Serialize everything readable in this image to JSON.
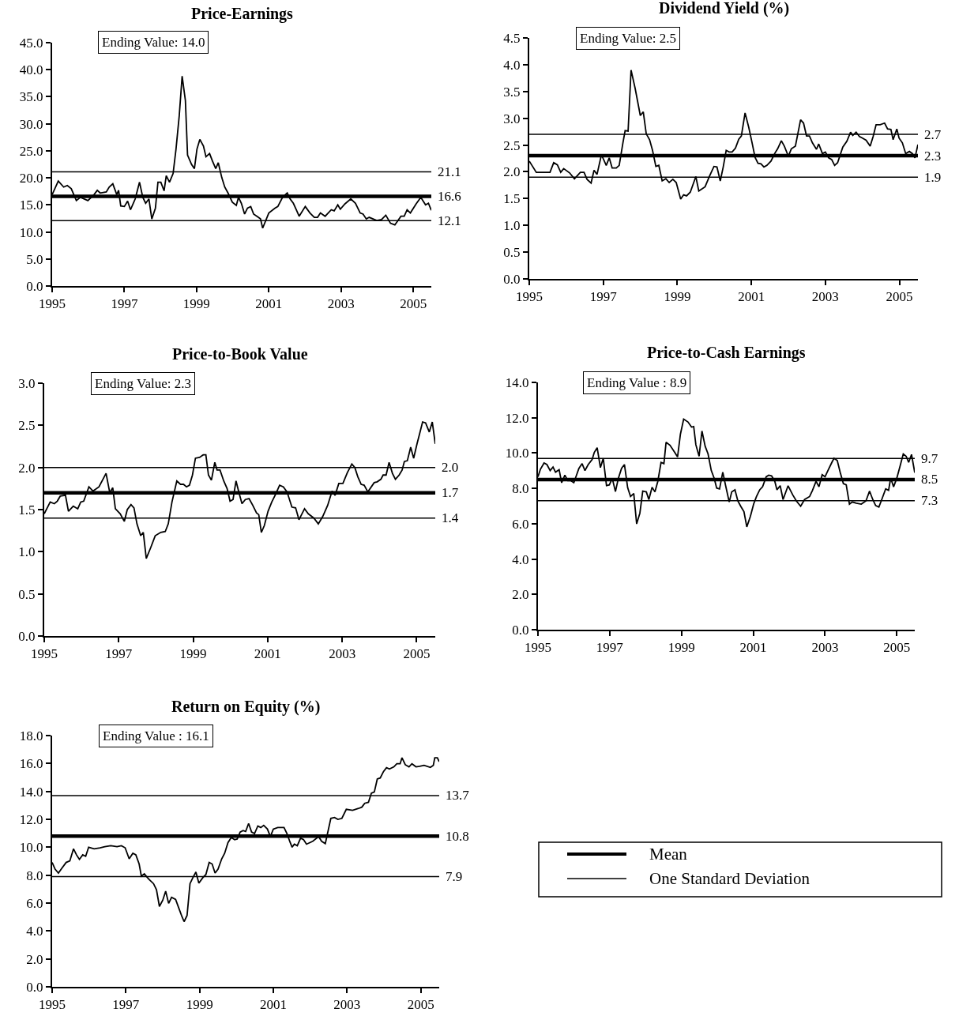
{
  "chart_data": [
    {
      "type": "line",
      "title": "Price-Earnings",
      "annotations": [
        "Ending Value: 14.0"
      ],
      "xlim": [
        1995,
        2005.5
      ],
      "xticks": [
        1995,
        1997,
        1999,
        2001,
        2003,
        2005
      ],
      "ylim": [
        0,
        45
      ],
      "yticks": [
        {
          "value": 0,
          "label": "0.0"
        },
        {
          "value": 5,
          "label": "5.0"
        },
        {
          "value": 10,
          "label": "10.0"
        },
        {
          "value": 15,
          "label": "15.0"
        },
        {
          "value": 20,
          "label": "20.0"
        },
        {
          "value": 25,
          "label": "25.0"
        },
        {
          "value": 30,
          "label": "30.0"
        },
        {
          "value": 35,
          "label": "35.0"
        },
        {
          "value": 40,
          "label": "40.0"
        },
        {
          "value": 45,
          "label": "45.0"
        }
      ],
      "ref_lines": [
        {
          "axis": "y",
          "value": 21.1,
          "label": "21.1",
          "color": "#000000"
        },
        {
          "axis": "y",
          "value": 16.6,
          "label": "16.6",
          "color": "#000000"
        },
        {
          "axis": "y",
          "value": 12.1,
          "label": "12.1",
          "color": "#000000"
        }
      ],
      "x": [
        1995.0,
        1995.17,
        1995.32,
        1995.42,
        1995.53,
        1995.67,
        1995.78,
        1995.99,
        1996.16,
        1996.25,
        1996.33,
        1996.5,
        1996.58,
        1996.68,
        1996.79,
        1996.84,
        1996.9,
        1997.0,
        1997.09,
        1997.17,
        1997.3,
        1997.42,
        1997.51,
        1997.59,
        1997.68,
        1997.76,
        1997.86,
        1997.93,
        1998.01,
        1998.1,
        1998.16,
        1998.25,
        1998.35,
        1998.43,
        1998.52,
        1998.6,
        1998.69,
        1998.75,
        1998.86,
        1998.94,
        1999.01,
        1999.09,
        1999.19,
        1999.26,
        1999.36,
        1999.44,
        1999.53,
        1999.6,
        1999.7,
        1999.78,
        1999.87,
        1999.99,
        2000.1,
        2000.16,
        2000.24,
        2000.33,
        2000.41,
        2000.5,
        2000.58,
        2000.71,
        2000.77,
        2000.83,
        2001.0,
        2001.17,
        2001.25,
        2001.38,
        2001.51,
        2001.59,
        2001.68,
        2001.76,
        2001.84,
        2002.01,
        2002.14,
        2002.26,
        2002.35,
        2002.43,
        2002.56,
        2002.73,
        2002.81,
        2002.91,
        2002.98,
        2003.11,
        2003.27,
        2003.4,
        2003.53,
        2003.61,
        2003.7,
        2003.78,
        2003.99,
        2004.12,
        2004.24,
        2004.37,
        2004.49,
        2004.66,
        2004.75,
        2004.83,
        2004.92,
        2005.08,
        2005.21,
        2005.34,
        2005.42,
        2005.5
      ],
      "series": [
        {
          "color": "#000000",
          "values": [
            16.9,
            19.4,
            18.3,
            18.6,
            18.0,
            15.8,
            16.4,
            15.8,
            16.9,
            17.7,
            17.2,
            17.4,
            18.3,
            18.9,
            16.9,
            17.7,
            14.8,
            14.7,
            15.7,
            14.1,
            16.1,
            19.2,
            16.4,
            15.3,
            16.1,
            12.4,
            14.4,
            19.2,
            19.2,
            17.6,
            20.4,
            19.2,
            20.8,
            25.3,
            31.5,
            38.8,
            34.3,
            24.2,
            22.5,
            21.7,
            25.3,
            27.1,
            25.9,
            23.9,
            24.5,
            23.1,
            21.7,
            22.8,
            20.0,
            18.3,
            17.2,
            15.5,
            14.9,
            16.4,
            15.3,
            13.3,
            14.4,
            14.7,
            13.3,
            12.7,
            12.4,
            10.7,
            13.5,
            14.4,
            14.7,
            16.4,
            17.2,
            16.1,
            15.3,
            14.1,
            12.9,
            14.7,
            13.5,
            12.7,
            12.7,
            13.5,
            12.9,
            14.1,
            13.9,
            15.0,
            14.2,
            15.2,
            16.1,
            15.3,
            13.5,
            13.3,
            12.4,
            12.7,
            12.1,
            12.3,
            13.1,
            11.6,
            11.3,
            12.9,
            12.9,
            14.1,
            13.5,
            15.2,
            16.4,
            15.0,
            15.3,
            14.0
          ]
        }
      ]
    },
    {
      "type": "line",
      "title": "Dividend Yield (%)",
      "annotations": [
        "Ending Value: 2.5"
      ],
      "xlim": [
        1995,
        2005.5
      ],
      "xticks": [
        1995,
        1997,
        1999,
        2001,
        2003,
        2005
      ],
      "ylim": [
        0,
        4.5
      ],
      "yticks": [
        {
          "value": 0,
          "label": "0.0"
        },
        {
          "value": 0.5,
          "label": "0.5"
        },
        {
          "value": 1,
          "label": "1.0"
        },
        {
          "value": 1.5,
          "label": "1.5"
        },
        {
          "value": 2,
          "label": "2.0"
        },
        {
          "value": 2.5,
          "label": "2.5"
        },
        {
          "value": 3,
          "label": "3.0"
        },
        {
          "value": 3.5,
          "label": "3.5"
        },
        {
          "value": 4,
          "label": "4.0"
        },
        {
          "value": 4.5,
          "label": "4.5"
        }
      ],
      "ref_lines": [
        {
          "axis": "y",
          "value": 2.7,
          "label": "2.7",
          "color": "#000000"
        },
        {
          "axis": "y",
          "value": 2.3,
          "label": "2.3",
          "color": "#000000"
        },
        {
          "axis": "y",
          "value": 1.9,
          "label": "1.9",
          "color": "#000000"
        }
      ],
      "x": [
        1995.0,
        1995.19,
        1995.56,
        1995.66,
        1995.76,
        1995.85,
        1995.93,
        1996.09,
        1996.22,
        1996.38,
        1996.48,
        1996.56,
        1996.67,
        1996.75,
        1996.83,
        1996.95,
        1997.08,
        1997.16,
        1997.24,
        1997.35,
        1997.43,
        1997.53,
        1997.59,
        1997.67,
        1997.75,
        1997.86,
        1998.0,
        1998.08,
        1998.16,
        1998.25,
        1998.33,
        1998.42,
        1998.5,
        1998.59,
        1998.69,
        1998.78,
        1998.88,
        1998.97,
        1999.09,
        1999.17,
        1999.25,
        1999.35,
        1999.5,
        1999.58,
        1999.75,
        1999.87,
        1999.99,
        2000.07,
        2000.16,
        2000.24,
        2000.32,
        2000.4,
        2000.48,
        2000.57,
        2000.66,
        2000.73,
        2000.83,
        2000.93,
        2001.02,
        2001.1,
        2001.18,
        2001.26,
        2001.34,
        2001.42,
        2001.53,
        2001.63,
        2001.71,
        2001.81,
        2001.89,
        2002.0,
        2002.08,
        2002.19,
        2002.33,
        2002.41,
        2002.49,
        2002.57,
        2002.65,
        2002.76,
        2002.82,
        2002.92,
        2003.0,
        2003.09,
        2003.17,
        2003.25,
        2003.33,
        2003.47,
        2003.58,
        2003.68,
        2003.74,
        2003.83,
        2003.92,
        2004.0,
        2004.1,
        2004.21,
        2004.29,
        2004.37,
        2004.48,
        2004.6,
        2004.68,
        2004.77,
        2004.83,
        2004.93,
        2004.99,
        2005.08,
        2005.17,
        2005.27,
        2005.35,
        2005.42,
        2005.5
      ],
      "series": [
        {
          "color": "#000000",
          "values": [
            2.2,
            1.99,
            1.99,
            2.17,
            2.13,
            1.99,
            2.06,
            1.98,
            1.87,
            1.99,
            1.99,
            1.86,
            1.79,
            2.03,
            1.95,
            2.32,
            2.12,
            2.26,
            2.07,
            2.07,
            2.12,
            2.54,
            2.77,
            2.76,
            3.9,
            3.56,
            3.05,
            3.12,
            2.71,
            2.6,
            2.4,
            2.1,
            2.12,
            1.83,
            1.87,
            1.8,
            1.86,
            1.8,
            1.49,
            1.57,
            1.55,
            1.62,
            1.91,
            1.64,
            1.72,
            1.92,
            2.1,
            2.09,
            1.83,
            2.09,
            2.4,
            2.37,
            2.37,
            2.44,
            2.61,
            2.67,
            3.1,
            2.83,
            2.54,
            2.27,
            2.16,
            2.15,
            2.09,
            2.12,
            2.2,
            2.34,
            2.43,
            2.58,
            2.48,
            2.29,
            2.43,
            2.48,
            2.97,
            2.91,
            2.67,
            2.67,
            2.54,
            2.42,
            2.52,
            2.34,
            2.37,
            2.26,
            2.23,
            2.12,
            2.17,
            2.46,
            2.57,
            2.74,
            2.68,
            2.74,
            2.66,
            2.63,
            2.59,
            2.48,
            2.66,
            2.88,
            2.88,
            2.91,
            2.8,
            2.79,
            2.6,
            2.8,
            2.63,
            2.54,
            2.34,
            2.38,
            2.34,
            2.26,
            2.51
          ]
        }
      ]
    },
    {
      "type": "line",
      "title": "Price-to-Book Value",
      "annotations": [
        "Ending Value: 2.3"
      ],
      "xlim": [
        1995,
        2005.5
      ],
      "xticks": [
        1995,
        1997,
        1999,
        2001,
        2003,
        2005
      ],
      "ylim": [
        0,
        3
      ],
      "yticks": [
        {
          "value": 0,
          "label": "0.0"
        },
        {
          "value": 0.5,
          "label": "0.5"
        },
        {
          "value": 1,
          "label": "1.0"
        },
        {
          "value": 1.5,
          "label": "1.5"
        },
        {
          "value": 2,
          "label": "2.0"
        },
        {
          "value": 2.5,
          "label": "2.5"
        },
        {
          "value": 3,
          "label": "3.0"
        }
      ],
      "ref_lines": [
        {
          "axis": "y",
          "value": 2.0,
          "label": "2.0",
          "color": "#000000"
        },
        {
          "axis": "y",
          "value": 1.7,
          "label": "1.7",
          "color": "#000000"
        },
        {
          "axis": "y",
          "value": 1.4,
          "label": "1.4",
          "color": "#000000"
        }
      ],
      "x": [
        1995.0,
        1995.16,
        1995.27,
        1995.35,
        1995.43,
        1995.57,
        1995.65,
        1995.78,
        1995.9,
        1995.98,
        1996.06,
        1996.2,
        1996.31,
        1996.47,
        1996.66,
        1996.76,
        1996.84,
        1996.91,
        1997.04,
        1997.15,
        1997.23,
        1997.33,
        1997.41,
        1997.49,
        1997.59,
        1997.66,
        1997.74,
        1997.86,
        1997.98,
        1998.13,
        1998.25,
        1998.33,
        1998.43,
        1998.56,
        1998.66,
        1998.74,
        1998.82,
        1998.9,
        1998.98,
        1999.06,
        1999.17,
        1999.27,
        1999.34,
        1999.41,
        1999.49,
        1999.58,
        1999.64,
        1999.72,
        1999.82,
        1999.91,
        1999.99,
        2000.07,
        2000.15,
        2000.23,
        2000.31,
        2000.4,
        2000.5,
        2000.6,
        2000.7,
        2000.76,
        2000.83,
        2000.91,
        2001.01,
        2001.11,
        2001.21,
        2001.32,
        2001.42,
        2001.52,
        2001.65,
        2001.75,
        2001.84,
        2001.99,
        2002.09,
        2002.24,
        2002.36,
        2002.48,
        2002.61,
        2002.73,
        2002.81,
        2002.91,
        2003.02,
        2003.14,
        2003.26,
        2003.34,
        2003.42,
        2003.51,
        2003.59,
        2003.69,
        2003.86,
        2003.94,
        2004.04,
        2004.1,
        2004.18,
        2004.26,
        2004.35,
        2004.43,
        2004.53,
        2004.61,
        2004.67,
        2004.75,
        2004.84,
        2004.92,
        2005.01,
        2005.08,
        2005.16,
        2005.24,
        2005.34,
        2005.42,
        2005.5
      ],
      "series": [
        {
          "color": "#000000",
          "values": [
            1.45,
            1.59,
            1.57,
            1.6,
            1.66,
            1.67,
            1.48,
            1.54,
            1.51,
            1.59,
            1.6,
            1.77,
            1.72,
            1.77,
            1.93,
            1.7,
            1.76,
            1.51,
            1.45,
            1.36,
            1.5,
            1.56,
            1.52,
            1.33,
            1.19,
            1.23,
            0.92,
            1.05,
            1.19,
            1.23,
            1.24,
            1.33,
            1.59,
            1.84,
            1.8,
            1.8,
            1.77,
            1.79,
            1.91,
            2.11,
            2.12,
            2.15,
            2.15,
            1.91,
            1.85,
            2.06,
            1.97,
            1.97,
            1.84,
            1.75,
            1.6,
            1.62,
            1.84,
            1.7,
            1.57,
            1.62,
            1.63,
            1.55,
            1.46,
            1.44,
            1.23,
            1.31,
            1.48,
            1.59,
            1.68,
            1.79,
            1.77,
            1.71,
            1.53,
            1.52,
            1.38,
            1.51,
            1.45,
            1.4,
            1.33,
            1.42,
            1.55,
            1.72,
            1.67,
            1.81,
            1.81,
            1.94,
            2.04,
            2.0,
            1.89,
            1.8,
            1.79,
            1.71,
            1.82,
            1.83,
            1.86,
            1.91,
            1.91,
            2.06,
            1.93,
            1.86,
            1.91,
            1.97,
            2.07,
            2.08,
            2.24,
            2.11,
            2.28,
            2.4,
            2.54,
            2.53,
            2.42,
            2.54,
            2.28
          ]
        }
      ]
    },
    {
      "type": "line",
      "title": "Price-to-Cash Earnings",
      "annotations": [
        "Ending Value : 8.9"
      ],
      "xlim": [
        1995,
        2005.5
      ],
      "xticks": [
        1995,
        1997,
        1999,
        2001,
        2003,
        2005
      ],
      "ylim": [
        0,
        14
      ],
      "yticks": [
        {
          "value": 0,
          "label": "0.0"
        },
        {
          "value": 2,
          "label": "2.0"
        },
        {
          "value": 4,
          "label": "4.0"
        },
        {
          "value": 6,
          "label": "6.0"
        },
        {
          "value": 8,
          "label": "8.0"
        },
        {
          "value": 10,
          "label": "10.0"
        },
        {
          "value": 12,
          "label": "12.0"
        },
        {
          "value": 14,
          "label": "14.0"
        }
      ],
      "ref_lines": [
        {
          "axis": "y",
          "value": 9.7,
          "label": "9.7",
          "color": "#000000"
        },
        {
          "axis": "y",
          "value": 8.5,
          "label": "8.5",
          "color": "#000000"
        },
        {
          "axis": "y",
          "value": 7.3,
          "label": "7.3",
          "color": "#000000"
        }
      ],
      "x": [
        1995.0,
        1995.07,
        1995.17,
        1995.25,
        1995.34,
        1995.42,
        1995.49,
        1995.59,
        1995.66,
        1995.75,
        1995.83,
        1995.91,
        1996.0,
        1996.14,
        1996.23,
        1996.31,
        1996.4,
        1996.51,
        1996.57,
        1996.65,
        1996.74,
        1996.82,
        1996.91,
        1996.99,
        1997.07,
        1997.16,
        1997.24,
        1997.33,
        1997.41,
        1997.5,
        1997.58,
        1997.67,
        1997.75,
        1997.84,
        1997.92,
        1998.02,
        1998.09,
        1998.18,
        1998.26,
        1998.34,
        1998.43,
        1998.51,
        1998.57,
        1998.68,
        1998.81,
        1998.89,
        1998.97,
        1999.06,
        1999.18,
        1999.28,
        1999.34,
        1999.4,
        1999.49,
        1999.57,
        1999.66,
        1999.74,
        1999.83,
        1999.91,
        1999.98,
        2000.06,
        2000.15,
        2000.23,
        2000.33,
        2000.4,
        2000.49,
        2000.57,
        2000.65,
        2000.74,
        2000.82,
        2000.92,
        2001.01,
        2001.09,
        2001.18,
        2001.26,
        2001.36,
        2001.43,
        2001.51,
        2001.6,
        2001.66,
        2001.75,
        2001.83,
        2001.97,
        2002.1,
        2002.2,
        2002.32,
        2002.43,
        2002.57,
        2002.65,
        2002.75,
        2002.83,
        2002.92,
        2003.0,
        2003.08,
        2003.19,
        2003.25,
        2003.34,
        2003.42,
        2003.51,
        2003.59,
        2003.68,
        2003.76,
        2003.87,
        2004.01,
        2004.14,
        2004.24,
        2004.33,
        2004.41,
        2004.5,
        2004.58,
        2004.69,
        2004.77,
        2004.83,
        2004.91,
        2005.0,
        2005.08,
        2005.18,
        2005.26,
        2005.33,
        2005.41,
        2005.5
      ],
      "series": [
        {
          "color": "#000000",
          "values": [
            8.66,
            9.09,
            9.44,
            9.35,
            9.01,
            9.21,
            8.92,
            9.06,
            8.32,
            8.75,
            8.44,
            8.44,
            8.32,
            9.13,
            9.4,
            9.01,
            9.35,
            9.64,
            10.04,
            10.3,
            9.18,
            9.7,
            8.16,
            8.2,
            8.57,
            7.82,
            8.57,
            9.14,
            9.35,
            8.04,
            7.54,
            7.71,
            5.99,
            6.6,
            7.85,
            7.8,
            7.37,
            8.06,
            7.8,
            8.4,
            9.47,
            9.4,
            10.61,
            10.44,
            10.04,
            9.78,
            11.07,
            11.92,
            11.76,
            11.47,
            11.5,
            10.47,
            9.82,
            11.25,
            10.38,
            9.95,
            9.01,
            8.58,
            8.02,
            7.97,
            8.92,
            8.15,
            7.23,
            7.8,
            7.92,
            7.29,
            6.99,
            6.68,
            5.82,
            6.42,
            7.11,
            7.54,
            7.92,
            8.09,
            8.66,
            8.75,
            8.71,
            8.4,
            7.92,
            8.15,
            7.37,
            8.15,
            7.63,
            7.29,
            6.99,
            7.37,
            7.54,
            7.89,
            8.4,
            8.09,
            8.78,
            8.66,
            9.01,
            9.47,
            9.7,
            9.58,
            8.92,
            8.27,
            8.2,
            7.11,
            7.23,
            7.16,
            7.11,
            7.29,
            7.85,
            7.37,
            7.03,
            6.94,
            7.37,
            7.97,
            7.89,
            8.58,
            8.09,
            8.58,
            9.18,
            9.95,
            9.82,
            9.47,
            9.92,
            8.89
          ]
        }
      ]
    },
    {
      "type": "line",
      "title": "Return on Equity (%)",
      "annotations": [
        "Ending Value : 16.1"
      ],
      "xlim": [
        1995,
        2005.5
      ],
      "xticks": [
        1995,
        1997,
        1999,
        2001,
        2003,
        2005
      ],
      "ylim": [
        0,
        18
      ],
      "yticks": [
        {
          "value": 0,
          "label": "0.0"
        },
        {
          "value": 2,
          "label": "2.0"
        },
        {
          "value": 4,
          "label": "4.0"
        },
        {
          "value": 6,
          "label": "6.0"
        },
        {
          "value": 8,
          "label": "8.0"
        },
        {
          "value": 10,
          "label": "10.0"
        },
        {
          "value": 12,
          "label": "12.0"
        },
        {
          "value": 14,
          "label": "14.0"
        },
        {
          "value": 16,
          "label": "16.0"
        },
        {
          "value": 18,
          "label": "18.0"
        }
      ],
      "ref_lines": [
        {
          "axis": "y",
          "value": 13.7,
          "label": "13.7",
          "color": "#000000"
        },
        {
          "axis": "y",
          "value": 10.8,
          "label": "10.8",
          "color": "#000000"
        },
        {
          "axis": "y",
          "value": 7.9,
          "label": "7.9",
          "color": "#000000"
        }
      ],
      "x": [
        1995.0,
        1995.08,
        1995.17,
        1995.27,
        1995.38,
        1995.48,
        1995.58,
        1995.66,
        1995.74,
        1995.83,
        1995.91,
        1995.99,
        1996.14,
        1996.3,
        1996.43,
        1996.59,
        1996.76,
        1996.88,
        1996.98,
        1997.09,
        1997.19,
        1997.27,
        1997.36,
        1997.42,
        1997.5,
        1997.62,
        1997.75,
        1997.83,
        1997.91,
        1998.0,
        1998.08,
        1998.16,
        1998.24,
        1998.35,
        1998.45,
        1998.52,
        1998.58,
        1998.66,
        1998.74,
        1998.82,
        1998.9,
        1998.98,
        1999.09,
        1999.17,
        1999.26,
        1999.34,
        1999.42,
        1999.5,
        1999.6,
        1999.68,
        1999.77,
        1999.86,
        1999.95,
        2000.02,
        2000.1,
        2000.18,
        2000.25,
        2000.33,
        2000.41,
        2000.49,
        2000.58,
        2000.66,
        2000.74,
        2000.84,
        2000.92,
        2001.0,
        2001.12,
        2001.29,
        2001.37,
        2001.45,
        2001.51,
        2001.57,
        2001.65,
        2001.74,
        2001.82,
        2001.9,
        2002.07,
        2002.23,
        2002.31,
        2002.41,
        2002.56,
        2002.66,
        2002.75,
        2002.86,
        2002.98,
        2003.15,
        2003.31,
        2003.4,
        2003.48,
        2003.58,
        2003.66,
        2003.74,
        2003.82,
        2003.9,
        2003.99,
        2004.07,
        2004.15,
        2004.27,
        2004.35,
        2004.44,
        2004.49,
        2004.58,
        2004.68,
        2004.76,
        2004.87,
        2004.97,
        2005.09,
        2005.26,
        2005.34,
        2005.38,
        2005.45,
        2005.5
      ],
      "series": [
        {
          "color": "#000000",
          "values": [
            8.91,
            8.43,
            8.15,
            8.52,
            8.91,
            9.02,
            9.89,
            9.46,
            9.13,
            9.46,
            9.35,
            10.0,
            9.89,
            9.96,
            10.04,
            10.11,
            10.04,
            10.11,
            9.96,
            9.17,
            9.57,
            9.46,
            8.8,
            7.93,
            8.09,
            7.72,
            7.39,
            6.96,
            5.76,
            6.2,
            6.85,
            5.98,
            6.41,
            6.26,
            5.54,
            5.04,
            4.67,
            5.11,
            7.39,
            7.83,
            8.22,
            7.43,
            7.83,
            8.04,
            8.91,
            8.8,
            8.15,
            8.43,
            9.17,
            9.57,
            10.33,
            10.7,
            10.54,
            10.59,
            11.09,
            11.2,
            11.13,
            11.7,
            11.09,
            10.98,
            11.52,
            11.41,
            11.57,
            11.3,
            10.76,
            11.3,
            11.41,
            11.41,
            10.98,
            10.39,
            10.0,
            10.22,
            10.11,
            10.65,
            10.54,
            10.22,
            10.43,
            10.76,
            10.43,
            10.26,
            12.07,
            12.13,
            12.0,
            12.07,
            12.72,
            12.65,
            12.78,
            12.87,
            13.15,
            13.22,
            13.87,
            13.96,
            14.89,
            14.96,
            15.43,
            15.7,
            15.61,
            15.76,
            15.98,
            15.98,
            16.41,
            15.91,
            15.76,
            15.98,
            15.76,
            15.8,
            15.87,
            15.72,
            15.87,
            16.41,
            16.41,
            16.13
          ]
        }
      ]
    },
    {
      "type": "other",
      "annotations": [
        "Mean",
        "One Standard Deviation"
      ]
    }
  ]
}
